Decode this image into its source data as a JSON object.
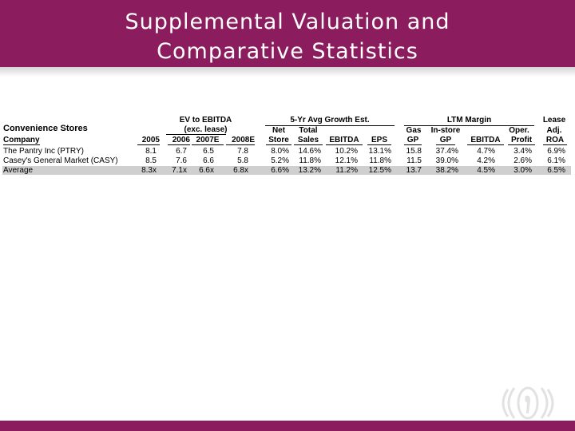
{
  "title": {
    "line1": "Supplemental Valuation and",
    "line2": "Comparative Statistics"
  },
  "table": {
    "groups": {
      "ev_line1": "EV to EBITDA",
      "ev_line2": "(exc. lease)",
      "growth": "5-Yr Avg Growth Est.",
      "ltm": "LTM Margin",
      "lease_line1": "Lease",
      "lease_line2": "Adj."
    },
    "section_label": "Convenience Stores",
    "company_header": "Company",
    "col_top": {
      "net": "Net",
      "total": "Total",
      "gas": "Gas",
      "instore": "In-store",
      "oper": "Oper."
    },
    "col_bottom": {
      "y2005": "2005",
      "y2006": "2006",
      "y2007e": "2007E",
      "y2008e": "2008E",
      "store": "Store",
      "sales": "Sales",
      "ebitda": "EBITDA",
      "eps": "EPS",
      "gp1": "GP",
      "gp2": "GP",
      "ebitda2": "EBITDA",
      "profit": "Profit",
      "roa": "ROA"
    },
    "rows": [
      {
        "name": "The Pantry Inc (PTRY)",
        "v": [
          "8.1",
          "6.7",
          "6.5",
          "7.8",
          "8.0%",
          "14.6%",
          "10.2%",
          "13.1%",
          "15.8",
          "37.4%",
          "4.7%",
          "3.4%",
          "6.9%"
        ]
      },
      {
        "name": "Casey's General Market (CASY)",
        "v": [
          "8.5",
          "7.6",
          "6.6",
          "5.8",
          "5.2%",
          "11.8%",
          "12.1%",
          "11.8%",
          "11.5",
          "39.0%",
          "4.2%",
          "2.6%",
          "6.1%"
        ]
      },
      {
        "name": "Average",
        "v": [
          "8.3x",
          "7.1x",
          "6.6x",
          "6.8x",
          "6.6%",
          "13.2%",
          "11.2%",
          "12.5%",
          "13.7",
          "38.2%",
          "4.5%",
          "3.0%",
          "6.5%"
        ]
      }
    ]
  },
  "colors": {
    "brand": "#8b1d5e",
    "average_band": "#cfcfcf"
  }
}
